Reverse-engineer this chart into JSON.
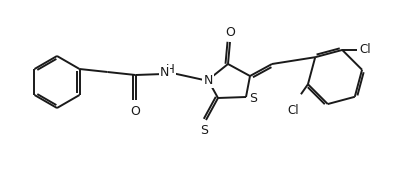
{
  "background_color": "#ffffff",
  "line_color": "#1a1a1a",
  "line_width": 1.4,
  "font_size": 8.5,
  "figsize": [
    4.06,
    1.8
  ],
  "dpi": 100,
  "xlim": [
    0,
    406
  ],
  "ylim": [
    0,
    180
  ]
}
